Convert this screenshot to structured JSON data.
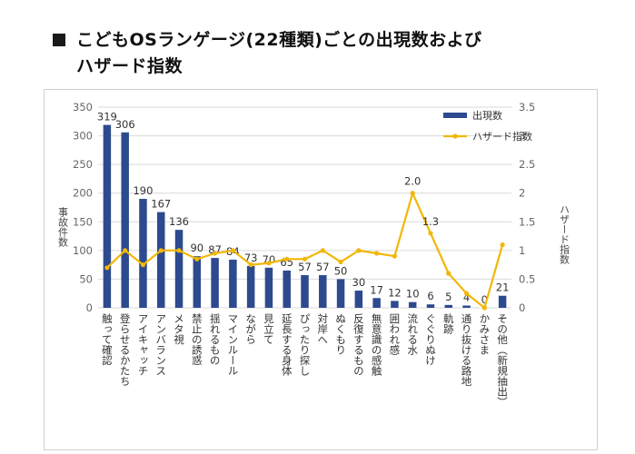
{
  "title": {
    "line1": "こどもOSランゲージ(22種類)ごとの出現数および",
    "line2": "ハザード指数"
  },
  "colors": {
    "bar": "#2e4a8f",
    "line": "#f2b705",
    "grid": "#d9d9d9"
  },
  "chart_data": {
    "type": "bar",
    "title": "こどもOSランゲージ(22種類)ごとの出現数およびハザード指数",
    "categories": [
      "触って確認",
      "登らせるかたち",
      "アイキャッチ",
      "アンバランス",
      "メタ視",
      "禁止の誘惑",
      "揺れるもの",
      "マインルール",
      "ながら",
      "見立て",
      "延長する身体",
      "ぴったり探し",
      "対岸へ",
      "ぬくもり",
      "反復するもの",
      "無意識の感触",
      "囲われ感",
      "流れる水",
      "ぐぐりぬけ",
      "軌跡",
      "通り抜ける路地",
      "かみさま",
      "その他（新規抽出）"
    ],
    "series": [
      {
        "name": "出現数",
        "type": "bar",
        "axis": "left",
        "values": [
          319,
          306,
          190,
          167,
          136,
          90,
          87,
          84,
          73,
          70,
          65,
          57,
          57,
          50,
          30,
          17,
          12,
          10,
          6,
          5,
          4,
          0,
          21
        ]
      },
      {
        "name": "ハザード指数",
        "type": "line",
        "axis": "right",
        "values": [
          0.7,
          1.0,
          0.75,
          1.0,
          1.0,
          0.85,
          0.95,
          1.0,
          0.75,
          0.78,
          0.85,
          0.85,
          1.0,
          0.8,
          1.0,
          0.95,
          0.9,
          2.0,
          1.3,
          0.6,
          0.25,
          0.0,
          1.1
        ]
      }
    ],
    "data_labels": [
      "319",
      "306",
      "190",
      "167",
      "136",
      "90",
      "87",
      "84",
      "73",
      "70",
      "65",
      "57",
      "57",
      "50",
      "30",
      "17",
      "12",
      "10",
      "6",
      "5",
      "4",
      "0",
      "21"
    ],
    "line_labels": [
      {
        "index": 17,
        "text": "2.0"
      },
      {
        "index": 18,
        "text": "1.3"
      }
    ],
    "ylabel": "事故件数",
    "y2label": "ハザード指数",
    "ylim": [
      0,
      350
    ],
    "y2lim": [
      0,
      3.5
    ],
    "yticks": [
      "0",
      "50",
      "100",
      "150",
      "200",
      "250",
      "300",
      "350"
    ],
    "y2ticks": [
      "0",
      "0.5",
      "1",
      "1.5",
      "2",
      "2.5",
      "3",
      "3.5"
    ],
    "legend": [
      "出現数",
      "ハザード指数"
    ],
    "legend_position": "top-right",
    "grid": true
  }
}
